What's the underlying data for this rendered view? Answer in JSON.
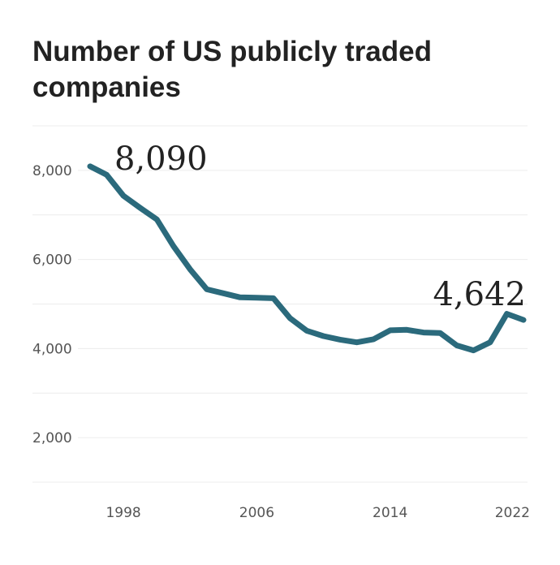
{
  "chart_data": {
    "type": "line",
    "title": "Number of US publicly traded companies",
    "xlabel": "",
    "ylabel": "",
    "x": [
      1996,
      1997,
      1998,
      1999,
      2000,
      2001,
      2002,
      2003,
      2004,
      2005,
      2006,
      2007,
      2008,
      2009,
      2010,
      2011,
      2012,
      2013,
      2014,
      2015,
      2016,
      2017,
      2018,
      2019,
      2020,
      2021,
      2022
    ],
    "series": [
      {
        "values": [
          8090,
          7900,
          7430,
          7160,
          6900,
          6300,
          5780,
          5330,
          5240,
          5150,
          5140,
          5130,
          4680,
          4400,
          4280,
          4200,
          4140,
          4210,
          4410,
          4420,
          4360,
          4350,
          4070,
          3960,
          4140,
          4780,
          4642
        ],
        "color": "#2b6a7c"
      }
    ],
    "xlim": [
      1996,
      2022
    ],
    "ylim": [
      1000,
      9000
    ],
    "x_ticks": [
      {
        "value": 1998,
        "label": "1998"
      },
      {
        "value": 2006,
        "label": "2006"
      },
      {
        "value": 2014,
        "label": "2014"
      },
      {
        "value": 2022,
        "label": "2022"
      }
    ],
    "y_ticks": [
      {
        "value": 2000,
        "label": "2,000"
      },
      {
        "value": 4000,
        "label": "4,000"
      },
      {
        "value": 6000,
        "label": "6,000"
      },
      {
        "value": 8000,
        "label": "8,000"
      }
    ],
    "gridlines": [
      1000,
      2000,
      3000,
      4000,
      5000,
      6000,
      7000,
      8000,
      9000
    ],
    "grid": true,
    "legend": "none",
    "annotations": [
      {
        "x": 1996,
        "y": 8090,
        "label": "8,090"
      },
      {
        "x": 2022,
        "y": 4642,
        "label": "4,642"
      }
    ]
  }
}
